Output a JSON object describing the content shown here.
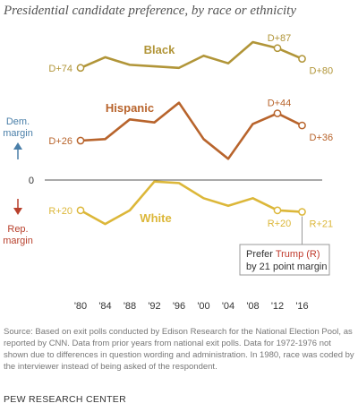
{
  "title": "Presidential candidate preference, by race or ethnicity",
  "colors": {
    "black": "#b19538",
    "hispanic": "#b8642c",
    "white": "#dcb739",
    "dem": "#4a7fa9",
    "rep": "#b8402c",
    "trump": "#c0392b"
  },
  "chart_data": {
    "type": "line",
    "x": [
      1980,
      1984,
      1988,
      1992,
      1996,
      2000,
      2004,
      2008,
      2012,
      2016
    ],
    "x_tick_labels": [
      "'80",
      "'84",
      "'88",
      "'92",
      "'96",
      "'00",
      "'04",
      "'08",
      "'12",
      "'16"
    ],
    "y_unit": "Democratic minus Republican margin, percentage points",
    "ylim": [
      -22,
      91
    ],
    "zero_label": "0",
    "series": [
      {
        "key": "black",
        "name": "Black",
        "color": "#b19538",
        "values": [
          74,
          81,
          76,
          75,
          74,
          82,
          77,
          91,
          87,
          80
        ],
        "point_labels": [
          {
            "index": 0,
            "text": "D+74"
          },
          {
            "index": 8,
            "text": "D+87"
          },
          {
            "index": 9,
            "text": "D+80"
          }
        ]
      },
      {
        "key": "hispanic",
        "name": "Hispanic",
        "color": "#b8642c",
        "values": [
          26,
          27,
          40,
          38,
          51,
          27,
          14,
          37,
          44,
          36
        ],
        "point_labels": [
          {
            "index": 0,
            "text": "D+26"
          },
          {
            "index": 8,
            "text": "D+44"
          },
          {
            "index": 9,
            "text": "D+36"
          }
        ]
      },
      {
        "key": "white",
        "name": "White",
        "color": "#dcb739",
        "values": [
          -20,
          -29,
          -20,
          -1,
          -2,
          -12,
          -17,
          -12,
          -20,
          -21
        ],
        "point_labels": [
          {
            "index": 0,
            "text": "R+20"
          },
          {
            "index": 8,
            "text": "R+20"
          },
          {
            "index": 9,
            "text": "R+21"
          }
        ]
      }
    ],
    "annotations": {
      "dem_margin": "Dem. margin",
      "rep_margin": "Rep. margin",
      "callout": {
        "text_prefix": "Prefer ",
        "text_highlight": "Trump (R)",
        "text_line2": "by 21 point margin"
      }
    },
    "grid": false
  },
  "source_note": "Source: Based on exit polls conducted by Edison Research for the National Election Pool, as reported by CNN. Data from prior years from national exit polls. Data for 1972-1976 not shown due to differences in question wording and administration. In 1980, race was coded by the interviewer instead of being asked of the respondent.",
  "publisher": "PEW RESEARCH CENTER"
}
